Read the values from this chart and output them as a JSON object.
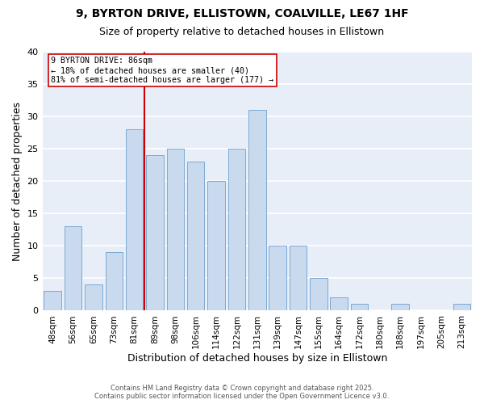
{
  "title1": "9, BYRTON DRIVE, ELLISTOWN, COALVILLE, LE67 1HF",
  "title2": "Size of property relative to detached houses in Ellistown",
  "xlabel": "Distribution of detached houses by size in Ellistown",
  "ylabel": "Number of detached properties",
  "bar_labels": [
    "48sqm",
    "56sqm",
    "65sqm",
    "73sqm",
    "81sqm",
    "89sqm",
    "98sqm",
    "106sqm",
    "114sqm",
    "122sqm",
    "131sqm",
    "139sqm",
    "147sqm",
    "155sqm",
    "164sqm",
    "172sqm",
    "180sqm",
    "188sqm",
    "197sqm",
    "205sqm",
    "213sqm"
  ],
  "bar_values": [
    3,
    13,
    4,
    9,
    28,
    24,
    25,
    23,
    20,
    25,
    31,
    10,
    10,
    5,
    2,
    1,
    0,
    1,
    0,
    0,
    1
  ],
  "bar_color": "#c9d9ee",
  "bar_edge_color": "#7baad4",
  "vline_x": 4.5,
  "vline_color": "#cc0000",
  "annotation_title": "9 BYRTON DRIVE: 86sqm",
  "annotation_line1": "← 18% of detached houses are smaller (40)",
  "annotation_line2": "81% of semi-detached houses are larger (177) →",
  "annotation_box_facecolor": "#ffffff",
  "annotation_box_edgecolor": "#cc0000",
  "ylim": [
    0,
    40
  ],
  "yticks": [
    0,
    5,
    10,
    15,
    20,
    25,
    30,
    35,
    40
  ],
  "footer1": "Contains HM Land Registry data © Crown copyright and database right 2025.",
  "footer2": "Contains public sector information licensed under the Open Government Licence v3.0.",
  "fig_bg_color": "#ffffff",
  "plot_bg_color": "#e8eef8",
  "grid_color": "#ffffff",
  "title_fontsize": 10,
  "subtitle_fontsize": 9
}
